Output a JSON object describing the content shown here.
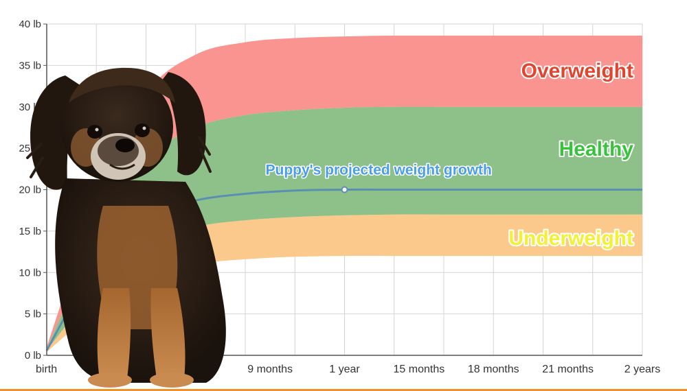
{
  "chart_data": {
    "type": "area",
    "title": "",
    "xlabel": "",
    "ylabel": "",
    "x_unit": "months",
    "xlim": [
      0,
      24
    ],
    "ylim": [
      0,
      40
    ],
    "x_ticks": [
      {
        "value": 0,
        "label": "birth"
      },
      {
        "value": 9,
        "label": "9 months"
      },
      {
        "value": 12,
        "label": "1 year"
      },
      {
        "value": 15,
        "label": "15 months"
      },
      {
        "value": 18,
        "label": "18 months"
      },
      {
        "value": 21,
        "label": "21 months"
      },
      {
        "value": 24,
        "label": "2 years"
      }
    ],
    "y_ticks": [
      {
        "value": 0,
        "label": "0 lb"
      },
      {
        "value": 5,
        "label": "5 lb"
      },
      {
        "value": 10,
        "label": "10 lb"
      },
      {
        "value": 15,
        "label": "15 lb"
      },
      {
        "value": 20,
        "label": "20 lb"
      },
      {
        "value": 25,
        "label": "25 lb"
      },
      {
        "value": 30,
        "label": "30 lb"
      },
      {
        "value": 35,
        "label": "35 lb"
      },
      {
        "value": 40,
        "label": "40 lb"
      }
    ],
    "grid": true,
    "x": [
      0,
      2,
      4,
      6,
      8,
      10,
      12,
      14,
      16,
      18,
      20,
      22,
      24
    ],
    "bands": [
      {
        "label": "Underweight",
        "color": "#fbc98c",
        "label_color": "#f5ef36",
        "lower": [
          0.4,
          5.5,
          9.5,
          11.0,
          11.6,
          11.9,
          12.0,
          12.0,
          12.0,
          12.0,
          12.0,
          12.0,
          12.0
        ],
        "upper": [
          0.6,
          8.0,
          13.5,
          15.5,
          16.3,
          16.7,
          16.9,
          17.0,
          17.0,
          17.0,
          17.0,
          17.0,
          17.0
        ]
      },
      {
        "label": "Healthy",
        "color": "#8ec08a",
        "label_color": "#39c23b",
        "lower": [
          0.6,
          8.0,
          13.5,
          15.5,
          16.3,
          16.7,
          16.9,
          17.0,
          17.0,
          17.0,
          17.0,
          17.0,
          17.0
        ],
        "upper": [
          0.8,
          14.0,
          23.5,
          27.5,
          29.0,
          29.6,
          29.9,
          30.0,
          30.0,
          30.0,
          30.0,
          30.0,
          30.0
        ]
      },
      {
        "label": "Overweight",
        "color": "#f99491",
        "label_color": "#e0452f",
        "lower": [
          0.8,
          14.0,
          23.5,
          27.5,
          29.0,
          29.6,
          29.9,
          30.0,
          30.0,
          30.0,
          30.0,
          30.0,
          30.0
        ],
        "upper": [
          1.0,
          18.5,
          31.5,
          36.3,
          37.8,
          38.3,
          38.5,
          38.6,
          38.6,
          38.6,
          38.6,
          38.6,
          38.6
        ]
      }
    ],
    "series": [
      {
        "name": "Puppy's projected weight growth",
        "color": "#5a8fb0",
        "values": [
          0.6,
          11.0,
          16.8,
          18.7,
          19.5,
          19.9,
          20.0,
          20.0,
          20.0,
          20.0,
          20.0,
          20.0,
          20.0
        ],
        "marker_x": 12,
        "marker_y": 20.0
      }
    ]
  },
  "colors": {
    "grid": "#d4d4d4",
    "axis": "#555555",
    "bottom_rule": "#f0922c"
  }
}
